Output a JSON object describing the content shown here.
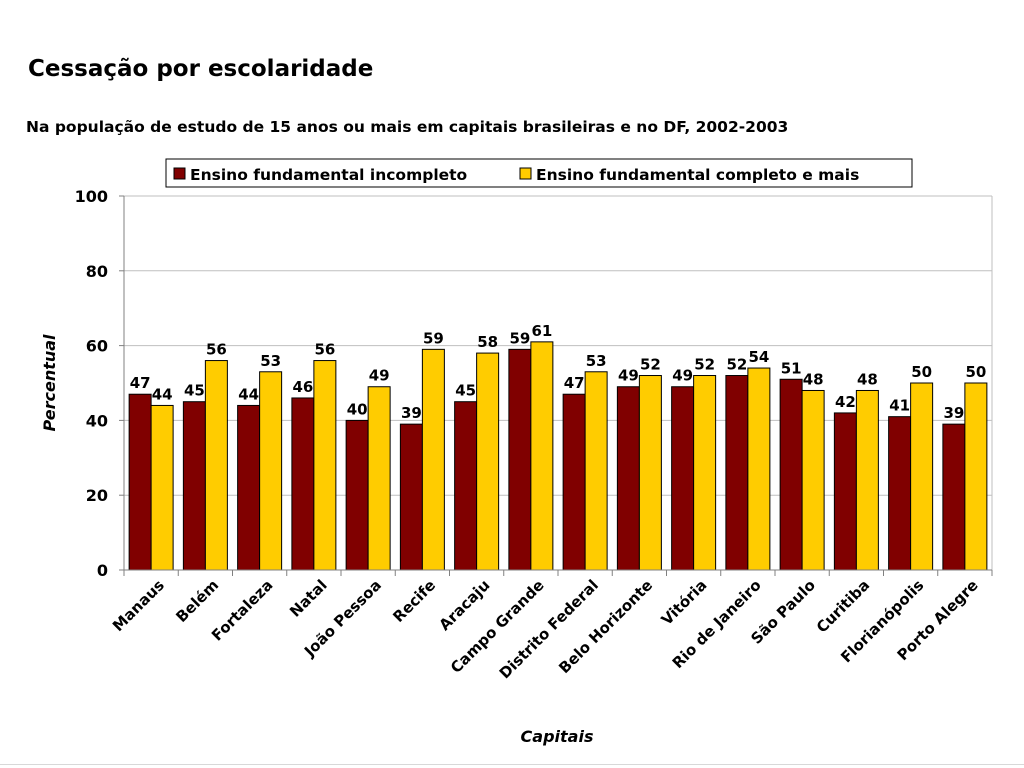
{
  "page": {
    "title": "Cessação por escolaridade",
    "subtitle": "Na população de estudo de 15 anos ou mais em capitais brasileiras e no DF, 2002-2003"
  },
  "colors": {
    "series_1": "#800000",
    "series_2": "#ffcc00",
    "gridline": "#bfbfbf",
    "axis": "#808080"
  },
  "chart_data": {
    "type": "bar",
    "title": "",
    "xlabel": "Capitais",
    "ylabel": "Percentual",
    "ylim": [
      0,
      100
    ],
    "yticks": [
      0,
      20,
      40,
      60,
      80,
      100
    ],
    "grid": true,
    "legend_position": "top",
    "categories": [
      "Manaus",
      "Belém",
      "Fortaleza",
      "Natal",
      "João Pessoa",
      "Recife",
      "Aracaju",
      "Campo Grande",
      "Distrito Federal",
      "Belo Horizonte",
      "Vitória",
      "Rio de Janeiro",
      "São Paulo",
      "Curitiba",
      "Florianópolis",
      "Porto Alegre"
    ],
    "series": [
      {
        "name": "Ensino fundamental incompleto",
        "values": [
          47,
          45,
          44,
          46,
          40,
          39,
          45,
          59,
          47,
          49,
          49,
          52,
          51,
          42,
          41,
          39
        ],
        "color": "#800000"
      },
      {
        "name": "Ensino fundamental completo e mais",
        "values": [
          44,
          56,
          53,
          56,
          49,
          59,
          58,
          61,
          53,
          52,
          52,
          54,
          48,
          48,
          50,
          50
        ],
        "color": "#ffcc00"
      }
    ]
  }
}
